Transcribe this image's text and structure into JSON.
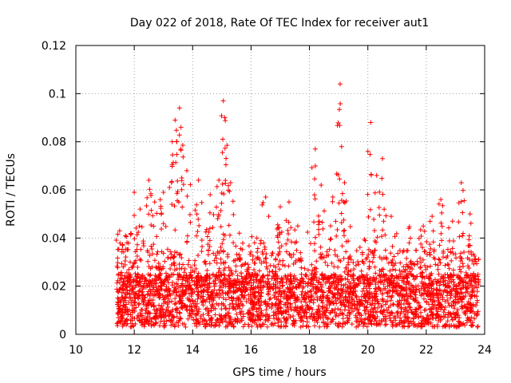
{
  "chart_data": {
    "type": "scatter",
    "title": "Day 022 of 2018, Rate Of TEC Index for receiver aut1",
    "xlabel": "GPS time / hours",
    "ylabel": "ROTI / TECUs",
    "xlim": [
      10,
      24
    ],
    "ylim": [
      0,
      0.12
    ],
    "xticks": [
      10,
      12,
      14,
      16,
      18,
      20,
      22,
      24
    ],
    "yticks": [
      0,
      0.02,
      0.04,
      0.06,
      0.08,
      0.1,
      0.12
    ],
    "xtick_labels": [
      "10",
      "12",
      "14",
      "16",
      "18",
      "20",
      "22",
      "24"
    ],
    "ytick_labels": [
      "0",
      "0.02",
      "0.04",
      "0.06",
      "0.08",
      "0.1",
      "0.12"
    ],
    "grid": true,
    "marker": "+",
    "marker_color": "#ff0000",
    "series": [
      {
        "name": "ROTI",
        "x_range": [
          11.4,
          23.8
        ],
        "note": "dense point cloud, typical band 0.003-0.03 TECU/s",
        "spikes": [
          {
            "x": 11.5,
            "y": 0.043
          },
          {
            "x": 11.7,
            "y": 0.041
          },
          {
            "x": 12.0,
            "y": 0.059
          },
          {
            "x": 12.2,
            "y": 0.052
          },
          {
            "x": 12.5,
            "y": 0.064
          },
          {
            "x": 12.7,
            "y": 0.055
          },
          {
            "x": 13.0,
            "y": 0.059
          },
          {
            "x": 13.3,
            "y": 0.08
          },
          {
            "x": 13.4,
            "y": 0.089
          },
          {
            "x": 13.55,
            "y": 0.094
          },
          {
            "x": 13.6,
            "y": 0.086
          },
          {
            "x": 13.8,
            "y": 0.068
          },
          {
            "x": 14.2,
            "y": 0.064
          },
          {
            "x": 14.6,
            "y": 0.058
          },
          {
            "x": 14.9,
            "y": 0.064
          },
          {
            "x": 15.05,
            "y": 0.097
          },
          {
            "x": 15.1,
            "y": 0.09
          },
          {
            "x": 15.3,
            "y": 0.063
          },
          {
            "x": 15.6,
            "y": 0.042
          },
          {
            "x": 16.2,
            "y": 0.04
          },
          {
            "x": 16.5,
            "y": 0.057
          },
          {
            "x": 17.0,
            "y": 0.053
          },
          {
            "x": 17.3,
            "y": 0.055
          },
          {
            "x": 17.6,
            "y": 0.045
          },
          {
            "x": 18.2,
            "y": 0.077
          },
          {
            "x": 18.4,
            "y": 0.062
          },
          {
            "x": 18.8,
            "y": 0.057
          },
          {
            "x": 19.05,
            "y": 0.104
          },
          {
            "x": 19.1,
            "y": 0.078
          },
          {
            "x": 19.2,
            "y": 0.063
          },
          {
            "x": 20.1,
            "y": 0.088
          },
          {
            "x": 20.3,
            "y": 0.066
          },
          {
            "x": 20.5,
            "y": 0.073
          },
          {
            "x": 20.8,
            "y": 0.049
          },
          {
            "x": 21.4,
            "y": 0.044
          },
          {
            "x": 21.9,
            "y": 0.045
          },
          {
            "x": 22.2,
            "y": 0.049
          },
          {
            "x": 22.5,
            "y": 0.056
          },
          {
            "x": 22.9,
            "y": 0.047
          },
          {
            "x": 23.2,
            "y": 0.063
          },
          {
            "x": 23.5,
            "y": 0.05
          }
        ]
      }
    ]
  }
}
